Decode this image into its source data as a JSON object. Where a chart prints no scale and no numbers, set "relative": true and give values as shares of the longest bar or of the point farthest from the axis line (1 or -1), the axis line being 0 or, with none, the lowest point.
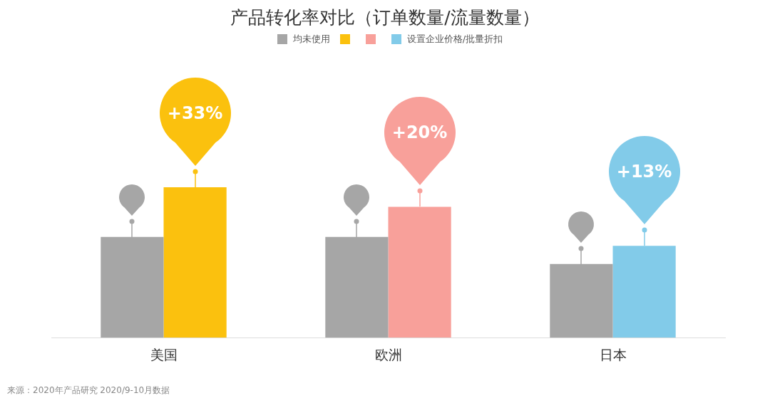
{
  "chart_data": {
    "type": "bar",
    "title": "产品转化率对比（订单数量/流量数量）",
    "relative": true,
    "legend": "top",
    "grid": false,
    "tick_labels": "x",
    "categories": [
      "美国",
      "欧洲",
      "日本"
    ],
    "series": [
      {
        "name": "均未使用",
        "color": "#a6a6a6",
        "values": [
          0.67,
          0.67,
          0.49
        ]
      },
      {
        "name": "设置企业价格/批量折扣",
        "colors": [
          "#fbc10e",
          "#f8a09a",
          "#82cbe9"
        ],
        "values": [
          1,
          0.87,
          0.61
        ]
      }
    ],
    "annotations": [
      "+33%",
      "+20%",
      "+13%",
      "来源：2020年产品研究 2020/9-10月数据"
    ]
  }
}
